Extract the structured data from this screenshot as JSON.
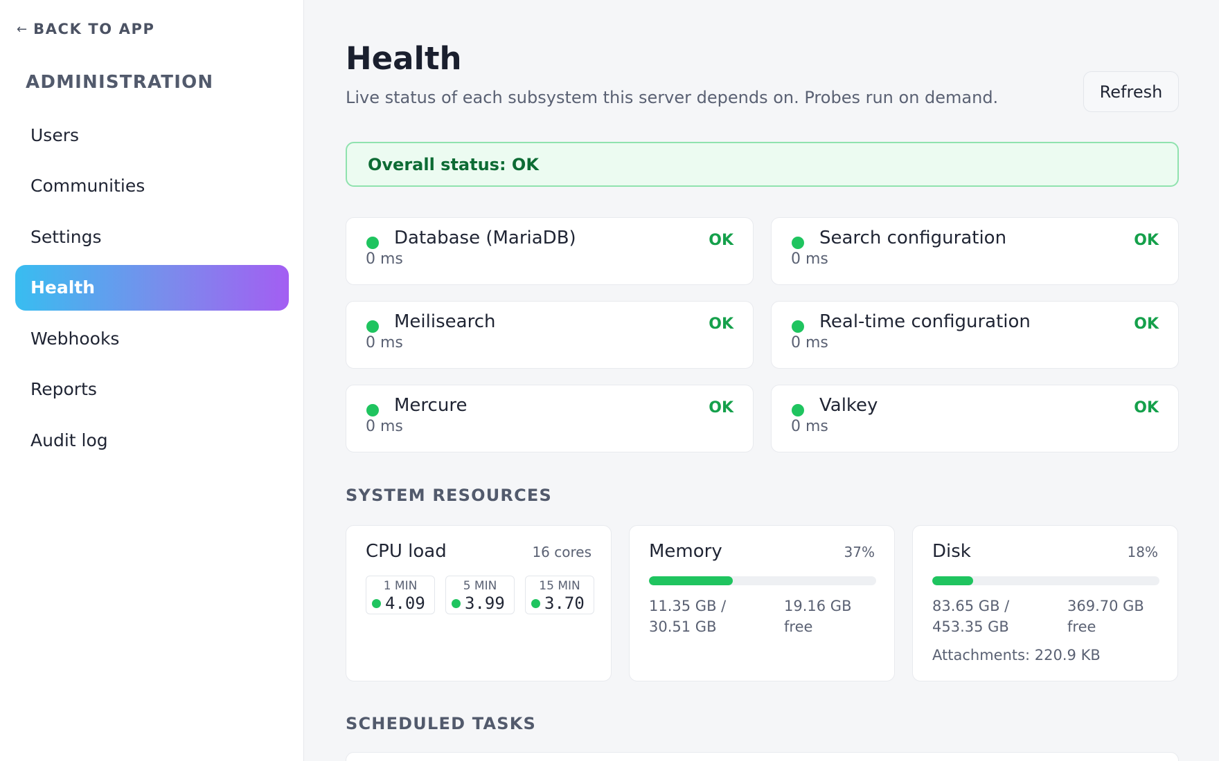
{
  "sidebar": {
    "back_label": "BACK TO APP",
    "back_icon": "arrow-left-icon",
    "heading": "ADMINISTRATION",
    "items": [
      {
        "label": "Users"
      },
      {
        "label": "Communities"
      },
      {
        "label": "Settings"
      },
      {
        "label": "Health",
        "active": true
      },
      {
        "label": "Webhooks"
      },
      {
        "label": "Reports"
      },
      {
        "label": "Audit log"
      }
    ]
  },
  "header": {
    "title": "Health",
    "subtitle": "Live status of each subsystem this server depends on. Probes run on demand.",
    "refresh_label": "Refresh"
  },
  "overall": {
    "text": "Overall status: OK"
  },
  "services": [
    {
      "name": "Database (MariaDB)",
      "latency": "0 ms",
      "status": "OK"
    },
    {
      "name": "Search configuration",
      "latency": "0 ms",
      "status": "OK"
    },
    {
      "name": "Meilisearch",
      "latency": "0 ms",
      "status": "OK"
    },
    {
      "name": "Real-time configuration",
      "latency": "0 ms",
      "status": "OK"
    },
    {
      "name": "Mercure",
      "latency": "0 ms",
      "status": "OK"
    },
    {
      "name": "Valkey",
      "latency": "0 ms",
      "status": "OK"
    }
  ],
  "resources": {
    "section_title": "SYSTEM RESOURCES",
    "cpu": {
      "title": "CPU load",
      "cores": "16 cores",
      "loads": [
        {
          "label": "1 MIN",
          "value": "4.09"
        },
        {
          "label": "5 MIN",
          "value": "3.99"
        },
        {
          "label": "15 MIN",
          "value": "3.70"
        }
      ]
    },
    "memory": {
      "title": "Memory",
      "percent_label": "37%",
      "percent": 37,
      "used": "11.35 GB / 30.51 GB",
      "free": "19.16 GB free"
    },
    "disk": {
      "title": "Disk",
      "percent_label": "18%",
      "percent": 18,
      "used": "83.65 GB / 453.35 GB",
      "free": "369.70 GB free",
      "attachments": "Attachments: 220.9 KB"
    }
  },
  "scheduled": {
    "section_title": "SCHEDULED TASKS"
  },
  "colors": {
    "ok_green": "#1fc45f",
    "ok_text": "#15a04b",
    "overall_bg": "#ecfbf1",
    "overall_border": "#8fe2ae",
    "active_gradient_start": "#38bdf0",
    "active_gradient_end": "#a35ef2"
  }
}
